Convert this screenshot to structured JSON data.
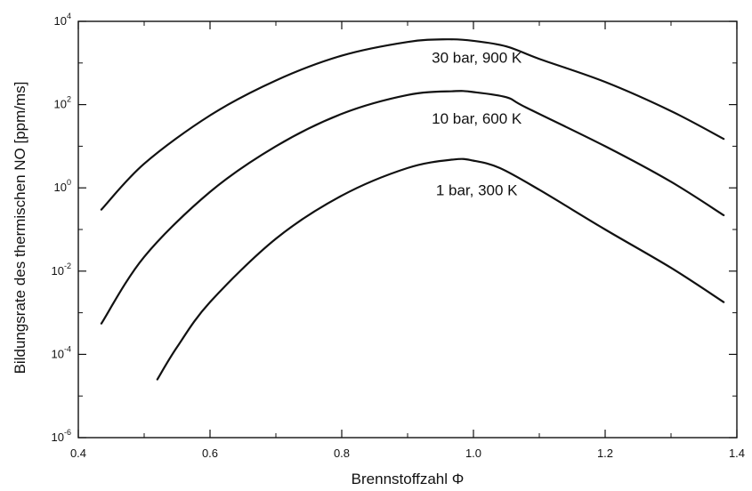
{
  "chart_data": {
    "type": "line",
    "title": "",
    "xlabel": "Brennstoffzahl Φ",
    "ylabel": "Bildungsrate des thermischen NO [ppm/ms]",
    "xlim": [
      0.4,
      1.4
    ],
    "ylim": [
      1e-06,
      10000.0
    ],
    "yscale": "log",
    "grid": false,
    "x_ticks": [
      0.4,
      0.6,
      0.8,
      1.0,
      1.2,
      1.4
    ],
    "x_tick_labels": [
      "0.4",
      "0.6",
      "0.8",
      "1.0",
      "1.2",
      "1.4"
    ],
    "y_ticks": [
      {
        "value": 1e-06,
        "base": "10",
        "exp": "-6"
      },
      {
        "value": 0.0001,
        "base": "10",
        "exp": "-4"
      },
      {
        "value": 0.01,
        "base": "10",
        "exp": "-2"
      },
      {
        "value": 1,
        "base": "10",
        "exp": "0"
      },
      {
        "value": 100.0,
        "base": "10",
        "exp": "2"
      },
      {
        "value": 10000.0,
        "base": "10",
        "exp": "4"
      }
    ],
    "series": [
      {
        "name": "30 bar, 900 K",
        "label_at": [
          1.005,
          1350
        ],
        "x": [
          0.435,
          0.5,
          0.6,
          0.7,
          0.8,
          0.9,
          0.96,
          1.0,
          1.05,
          1.1,
          1.2,
          1.3,
          1.38
        ],
        "y": [
          0.3,
          3.8,
          55,
          380,
          1500,
          3200,
          3700,
          3400,
          2500,
          1250,
          350,
          70,
          15
        ]
      },
      {
        "name": "10 bar, 600 K",
        "label_at": [
          1.005,
          47
        ],
        "x": [
          0.435,
          0.5,
          0.6,
          0.7,
          0.8,
          0.9,
          0.97,
          1.0,
          1.05,
          1.08,
          1.2,
          1.3,
          1.38
        ],
        "y": [
          0.00055,
          0.022,
          0.8,
          10,
          60,
          170,
          210,
          200,
          150,
          85,
          10,
          1.4,
          0.22
        ]
      },
      {
        "name": "1 bar, 300 K",
        "label_at": [
          1.005,
          0.9
        ],
        "x": [
          0.52,
          0.55,
          0.6,
          0.7,
          0.8,
          0.9,
          0.97,
          1.0,
          1.04,
          1.1,
          1.2,
          1.3,
          1.38
        ],
        "y": [
          2.5e-05,
          0.00015,
          0.0018,
          0.06,
          0.65,
          3.0,
          4.8,
          4.5,
          3.0,
          0.9,
          0.1,
          0.012,
          0.0018
        ]
      }
    ]
  }
}
